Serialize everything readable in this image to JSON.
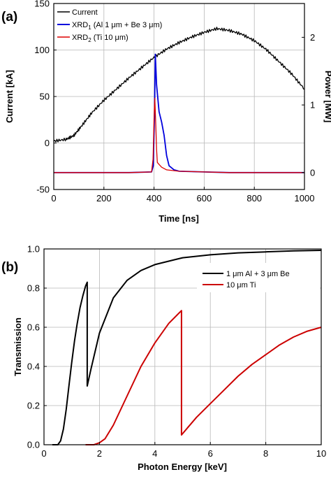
{
  "chart_data": [
    {
      "panel_label": "(a)",
      "type": "line",
      "xlabel": "Time [ns]",
      "ylabel": "Current [kA]",
      "y2label": "Power [MW]",
      "xlim": [
        0,
        1000
      ],
      "ylim": [
        -50,
        150
      ],
      "y2lim": [
        -0.25,
        2.5
      ],
      "xticks": [
        "0",
        "200",
        "400",
        "600",
        "800",
        "1000"
      ],
      "yticks": [
        "-50",
        "0",
        "50",
        "100",
        "150"
      ],
      "y2ticks": [
        "0",
        "1",
        "2"
      ],
      "grid": true,
      "legend_position": "top-left",
      "legend": [
        {
          "label": "Current"
        },
        {
          "label": "XRD",
          "sub": "1",
          "tail": " (Al 1 μm + Be 3 μm)"
        },
        {
          "label": "XRD",
          "sub": "2",
          "tail": " (Ti 10 μm)"
        }
      ],
      "series": [
        {
          "name": "Current",
          "axis": "left",
          "color": "#000000",
          "x": [
            0,
            50,
            80,
            110,
            150,
            200,
            250,
            300,
            350,
            400,
            450,
            500,
            550,
            600,
            650,
            700,
            750,
            800,
            850,
            900,
            950,
            1000
          ],
          "y": [
            2,
            4,
            8,
            18,
            32,
            46,
            58,
            70,
            81,
            92,
            101,
            108,
            114,
            119,
            123,
            121,
            117,
            110,
            100,
            87,
            74,
            58
          ]
        },
        {
          "name": "XRD1 (Al 1 μm + Be 3 μm)",
          "axis": "right",
          "color": "#0000dd",
          "x": [
            0,
            100,
            200,
            300,
            390,
            397,
            402,
            405,
            410,
            420,
            430,
            440,
            450,
            460,
            480,
            500,
            600,
            700,
            800,
            900,
            1000
          ],
          "y": [
            0,
            0,
            0,
            0,
            0.01,
            0.1,
            0.9,
            1.75,
            1.3,
            0.9,
            0.75,
            0.55,
            0.25,
            0.1,
            0.04,
            0.02,
            0.01,
            0,
            0,
            0,
            0
          ]
        },
        {
          "name": "XRD2 (Ti 10 μm)",
          "axis": "right",
          "color": "#dd0000",
          "x": [
            0,
            100,
            200,
            300,
            390,
            396,
            400,
            403,
            407,
            410,
            413,
            420,
            430,
            450,
            500,
            600,
            700,
            800,
            900,
            1000
          ],
          "y": [
            0,
            0,
            0,
            0,
            0.01,
            0.2,
            0.8,
            1.1,
            0.7,
            0.35,
            0.15,
            0.12,
            0.08,
            0.04,
            0.02,
            0.01,
            0,
            0,
            0,
            0
          ]
        }
      ]
    },
    {
      "panel_label": "(b)",
      "type": "line",
      "xlabel": "Photon Energy [keV]",
      "ylabel": "Transmission",
      "xlim": [
        0,
        10
      ],
      "ylim": [
        0,
        1
      ],
      "xticks": [
        "0",
        "2",
        "4",
        "6",
        "8",
        "10"
      ],
      "yticks": [
        "0.0",
        "0.2",
        "0.4",
        "0.6",
        "0.8",
        "1.0"
      ],
      "grid": true,
      "legend_position": "top-right",
      "legend": [
        {
          "label": "1 μm Al + 3 μm Be"
        },
        {
          "label": "10 μm Ti"
        }
      ],
      "series": [
        {
          "name": "1 μm Al + 3 μm Be",
          "color": "#000000",
          "x": [
            0.3,
            0.5,
            0.6,
            0.7,
            0.8,
            0.9,
            1.0,
            1.1,
            1.2,
            1.3,
            1.4,
            1.5,
            1.56,
            1.56,
            1.7,
            2.0,
            2.5,
            3.0,
            3.5,
            4.0,
            5.0,
            6.0,
            7.0,
            8.0,
            9.0,
            10.0
          ],
          "y": [
            0,
            0,
            0.02,
            0.08,
            0.18,
            0.3,
            0.42,
            0.53,
            0.62,
            0.7,
            0.76,
            0.81,
            0.83,
            0.3,
            0.39,
            0.57,
            0.75,
            0.84,
            0.89,
            0.92,
            0.955,
            0.97,
            0.98,
            0.985,
            0.99,
            0.993
          ]
        },
        {
          "name": "10 μm Ti",
          "color": "#cc0000",
          "x": [
            1.5,
            1.8,
            2.0,
            2.2,
            2.5,
            3.0,
            3.5,
            4.0,
            4.5,
            4.96,
            4.96,
            5.2,
            5.5,
            6.0,
            6.5,
            7.0,
            7.5,
            8.0,
            8.5,
            9.0,
            9.5,
            10.0
          ],
          "y": [
            0,
            0,
            0.01,
            0.03,
            0.1,
            0.25,
            0.4,
            0.52,
            0.62,
            0.685,
            0.05,
            0.09,
            0.14,
            0.21,
            0.28,
            0.35,
            0.41,
            0.46,
            0.51,
            0.55,
            0.58,
            0.6
          ]
        }
      ]
    }
  ]
}
